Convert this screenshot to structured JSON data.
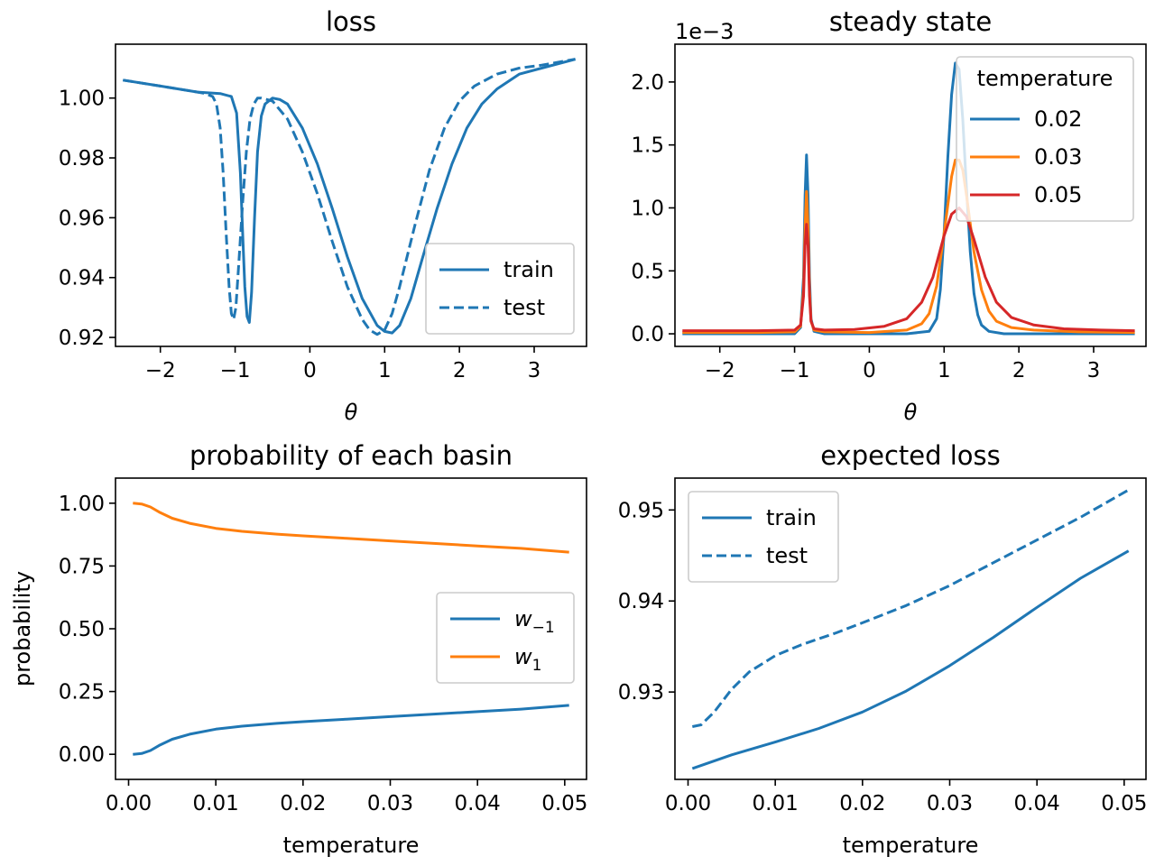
{
  "figure": {
    "background": "#ffffff"
  },
  "colors": {
    "blue": "#1f77b4",
    "orange": "#ff7f0e",
    "red": "#d62728"
  },
  "chart_data": [
    {
      "type": "line",
      "title": "loss",
      "xlabel": "θ",
      "ylabel": "",
      "xlim": [
        -2.6,
        3.7
      ],
      "ylim": [
        0.917,
        1.018
      ],
      "xticks": [
        -2,
        -1,
        0,
        1,
        2,
        3
      ],
      "xtick_labels": [
        "−2",
        "−1",
        "0",
        "1",
        "2",
        "3"
      ],
      "yticks": [
        0.92,
        0.94,
        0.96,
        0.98,
        1.0
      ],
      "ytick_labels": [
        "0.92",
        "0.94",
        "0.96",
        "0.98",
        "1.00"
      ],
      "legend": {
        "position": "lower-right",
        "title": ""
      },
      "series": [
        {
          "name": "train",
          "color": "#1f77b4",
          "dash": "solid",
          "x": [
            -2.5,
            -2.0,
            -1.5,
            -1.2,
            -1.05,
            -0.98,
            -0.93,
            -0.9,
            -0.87,
            -0.84,
            -0.81,
            -0.78,
            -0.74,
            -0.7,
            -0.65,
            -0.6,
            -0.5,
            -0.4,
            -0.3,
            -0.1,
            0.1,
            0.3,
            0.5,
            0.7,
            0.9,
            1.0,
            1.1,
            1.2,
            1.35,
            1.5,
            1.7,
            1.9,
            2.1,
            2.3,
            2.5,
            2.8,
            3.1,
            3.55
          ],
          "y": [
            1.006,
            1.004,
            1.002,
            1.0015,
            1.0005,
            0.995,
            0.975,
            0.955,
            0.937,
            0.927,
            0.925,
            0.935,
            0.96,
            0.982,
            0.994,
            0.998,
            1.0,
            0.9995,
            0.998,
            0.99,
            0.978,
            0.963,
            0.947,
            0.933,
            0.924,
            0.922,
            0.9215,
            0.924,
            0.933,
            0.946,
            0.963,
            0.978,
            0.99,
            0.998,
            1.003,
            1.008,
            1.01,
            1.013
          ]
        },
        {
          "name": "test",
          "color": "#1f77b4",
          "dash": "dashed",
          "x": [
            -2.5,
            -2.0,
            -1.5,
            -1.4,
            -1.3,
            -1.25,
            -1.2,
            -1.16,
            -1.12,
            -1.08,
            -1.05,
            -1.02,
            -0.99,
            -0.95,
            -0.9,
            -0.85,
            -0.8,
            -0.75,
            -0.7,
            -0.65,
            -0.5,
            -0.3,
            -0.1,
            0.1,
            0.3,
            0.5,
            0.7,
            0.8,
            0.9,
            1.0,
            1.1,
            1.2,
            1.4,
            1.6,
            1.8,
            2.0,
            2.2,
            2.5,
            2.8,
            3.1,
            3.55
          ],
          "y": [
            1.006,
            1.004,
            1.002,
            1.0015,
            1.0005,
            0.998,
            0.99,
            0.975,
            0.955,
            0.937,
            0.928,
            0.926,
            0.93,
            0.945,
            0.965,
            0.982,
            0.993,
            0.998,
            1.0,
            1.0,
            0.999,
            0.993,
            0.982,
            0.968,
            0.952,
            0.937,
            0.926,
            0.9225,
            0.921,
            0.9225,
            0.928,
            0.937,
            0.957,
            0.976,
            0.99,
            0.999,
            1.004,
            1.008,
            1.01,
            1.011,
            1.013
          ]
        }
      ]
    },
    {
      "type": "line",
      "title": "steady state",
      "offset_text": "1e−3",
      "xlabel": "θ",
      "ylabel": "",
      "xlim": [
        -2.6,
        3.7
      ],
      "ylim": [
        -0.1,
        2.3
      ],
      "xticks": [
        -2,
        -1,
        0,
        1,
        2,
        3
      ],
      "xtick_labels": [
        "−2",
        "−1",
        "0",
        "1",
        "2",
        "3"
      ],
      "yticks": [
        0.0,
        0.5,
        1.0,
        1.5,
        2.0
      ],
      "ytick_labels": [
        "0.0",
        "0.5",
        "1.0",
        "1.5",
        "2.0"
      ],
      "legend": {
        "position": "upper-right",
        "title": "temperature"
      },
      "series": [
        {
          "name": "0.02",
          "color": "#1f77b4",
          "x": [
            -2.5,
            -1.5,
            -1.0,
            -0.92,
            -0.88,
            -0.86,
            -0.84,
            -0.82,
            -0.8,
            -0.78,
            -0.74,
            -0.6,
            0.0,
            0.5,
            0.8,
            0.9,
            0.95,
            1.0,
            1.05,
            1.1,
            1.15,
            1.2,
            1.25,
            1.3,
            1.35,
            1.4,
            1.45,
            1.5,
            1.6,
            1.8,
            2.5,
            3.55
          ],
          "y": [
            0.0,
            0.0,
            0.0,
            0.05,
            0.45,
            1.1,
            1.42,
            1.1,
            0.45,
            0.12,
            0.02,
            0.0,
            0.0,
            0.0,
            0.02,
            0.12,
            0.35,
            0.8,
            1.4,
            1.9,
            2.15,
            2.1,
            1.7,
            1.15,
            0.65,
            0.32,
            0.15,
            0.07,
            0.02,
            0.0,
            0.0,
            0.0
          ]
        },
        {
          "name": "0.03",
          "color": "#ff7f0e",
          "x": [
            -2.5,
            -1.5,
            -1.0,
            -0.92,
            -0.88,
            -0.86,
            -0.84,
            -0.82,
            -0.8,
            -0.78,
            -0.74,
            -0.6,
            0.0,
            0.5,
            0.7,
            0.8,
            0.9,
            1.0,
            1.1,
            1.15,
            1.2,
            1.25,
            1.3,
            1.4,
            1.5,
            1.6,
            1.7,
            1.9,
            2.2,
            2.8,
            3.55
          ],
          "y": [
            0.01,
            0.01,
            0.015,
            0.06,
            0.35,
            0.85,
            1.13,
            0.85,
            0.35,
            0.1,
            0.03,
            0.015,
            0.01,
            0.03,
            0.08,
            0.16,
            0.38,
            0.8,
            1.25,
            1.38,
            1.38,
            1.3,
            1.1,
            0.65,
            0.35,
            0.18,
            0.1,
            0.05,
            0.03,
            0.015,
            0.01
          ]
        },
        {
          "name": "0.05",
          "color": "#d62728",
          "x": [
            -2.5,
            -1.5,
            -1.0,
            -0.92,
            -0.88,
            -0.86,
            -0.84,
            -0.82,
            -0.8,
            -0.78,
            -0.74,
            -0.6,
            -0.2,
            0.2,
            0.5,
            0.7,
            0.85,
            1.0,
            1.1,
            1.2,
            1.3,
            1.4,
            1.55,
            1.7,
            1.9,
            2.2,
            2.6,
            3.1,
            3.55
          ],
          "y": [
            0.025,
            0.025,
            0.03,
            0.07,
            0.3,
            0.7,
            0.87,
            0.7,
            0.3,
            0.1,
            0.04,
            0.03,
            0.035,
            0.06,
            0.12,
            0.25,
            0.45,
            0.78,
            0.95,
            1.0,
            0.93,
            0.75,
            0.45,
            0.25,
            0.13,
            0.07,
            0.04,
            0.03,
            0.025
          ]
        }
      ]
    },
    {
      "type": "line",
      "title": "probability of each basin",
      "xlabel": "temperature",
      "ylabel": "probability",
      "xlim": [
        -0.0015,
        0.0525
      ],
      "ylim": [
        -0.1,
        1.1
      ],
      "xticks": [
        0.0,
        0.01,
        0.02,
        0.03,
        0.04,
        0.05
      ],
      "xtick_labels": [
        "0.00",
        "0.01",
        "0.02",
        "0.03",
        "0.04",
        "0.05"
      ],
      "yticks": [
        0.0,
        0.25,
        0.5,
        0.75,
        1.0
      ],
      "ytick_labels": [
        "0.00",
        "0.25",
        "0.50",
        "0.75",
        "1.00"
      ],
      "legend": {
        "position": "center-right",
        "title": ""
      },
      "series": [
        {
          "name": "w−1",
          "legend_base": "w",
          "legend_sub": "−1",
          "color": "#1f77b4",
          "x": [
            0.0005,
            0.0015,
            0.0025,
            0.0035,
            0.005,
            0.007,
            0.01,
            0.013,
            0.017,
            0.02,
            0.025,
            0.03,
            0.035,
            0.04,
            0.045,
            0.0505
          ],
          "y": [
            0.0,
            0.003,
            0.015,
            0.035,
            0.06,
            0.08,
            0.1,
            0.112,
            0.123,
            0.13,
            0.14,
            0.15,
            0.16,
            0.17,
            0.18,
            0.195
          ]
        },
        {
          "name": "w1",
          "legend_base": "w",
          "legend_sub": "1",
          "color": "#ff7f0e",
          "x": [
            0.0005,
            0.0015,
            0.0025,
            0.0035,
            0.005,
            0.007,
            0.01,
            0.013,
            0.017,
            0.02,
            0.025,
            0.03,
            0.035,
            0.04,
            0.045,
            0.0505
          ],
          "y": [
            1.0,
            0.997,
            0.985,
            0.965,
            0.94,
            0.92,
            0.9,
            0.888,
            0.877,
            0.87,
            0.86,
            0.85,
            0.84,
            0.83,
            0.82,
            0.805
          ]
        }
      ]
    },
    {
      "type": "line",
      "title": "expected loss",
      "xlabel": "temperature",
      "ylabel": "",
      "xlim": [
        -0.0015,
        0.0525
      ],
      "ylim": [
        0.9204,
        0.9535
      ],
      "xticks": [
        0.0,
        0.01,
        0.02,
        0.03,
        0.04,
        0.05
      ],
      "xtick_labels": [
        "0.00",
        "0.01",
        "0.02",
        "0.03",
        "0.04",
        "0.05"
      ],
      "yticks": [
        0.93,
        0.94,
        0.95
      ],
      "ytick_labels": [
        "0.93",
        "0.94",
        "0.95"
      ],
      "legend": {
        "position": "upper-left",
        "title": ""
      },
      "series": [
        {
          "name": "train",
          "color": "#1f77b4",
          "dash": "solid",
          "x": [
            0.0005,
            0.005,
            0.01,
            0.015,
            0.02,
            0.025,
            0.03,
            0.035,
            0.04,
            0.045,
            0.0505
          ],
          "y": [
            0.9216,
            0.9231,
            0.9245,
            0.926,
            0.9278,
            0.9301,
            0.9329,
            0.936,
            0.9393,
            0.9425,
            0.9455
          ]
        },
        {
          "name": "test",
          "color": "#1f77b4",
          "dash": "dashed",
          "x": [
            0.0005,
            0.0015,
            0.003,
            0.005,
            0.007,
            0.01,
            0.013,
            0.017,
            0.02,
            0.025,
            0.03,
            0.035,
            0.04,
            0.045,
            0.0505
          ],
          "y": [
            0.9262,
            0.9264,
            0.9278,
            0.9303,
            0.9322,
            0.934,
            0.9352,
            0.9365,
            0.9376,
            0.9395,
            0.9417,
            0.9442,
            0.9467,
            0.9492,
            0.9522
          ]
        }
      ]
    }
  ]
}
